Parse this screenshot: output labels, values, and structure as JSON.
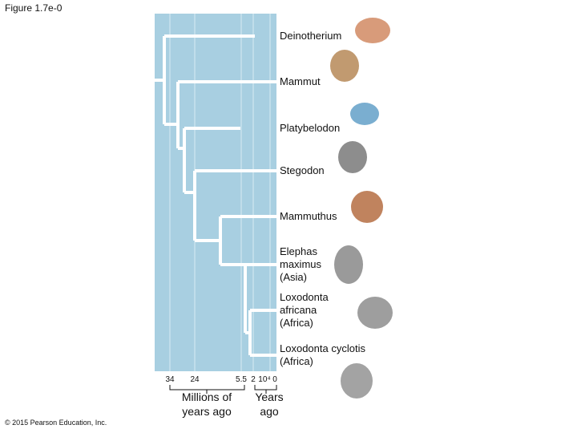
{
  "figure_label": "Figure 1.7e-0",
  "taxa": [
    {
      "lines": [
        "Deinotherium"
      ]
    },
    {
      "lines": [
        "Mammut"
      ]
    },
    {
      "lines": [
        "Platybelodon"
      ]
    },
    {
      "lines": [
        "Stegodon"
      ]
    },
    {
      "lines": [
        "Mammuthus"
      ]
    },
    {
      "lines": [
        "Elephas",
        "maximus",
        "(Asia)"
      ]
    },
    {
      "lines": [
        "Loxodonta",
        "africana",
        "(Africa)"
      ]
    },
    {
      "lines": [
        "Loxodonta cyclotis",
        "(Africa)"
      ]
    }
  ],
  "time_axis": {
    "ticks": [
      "34",
      "24",
      "5.5",
      "2",
      "10⁴",
      "0"
    ],
    "titles": [
      {
        "lines": [
          "Millions of",
          "years ago"
        ]
      },
      {
        "lines": [
          "Years",
          "ago"
        ]
      }
    ]
  },
  "copyright": "© 2015 Pearson Education, Inc."
}
